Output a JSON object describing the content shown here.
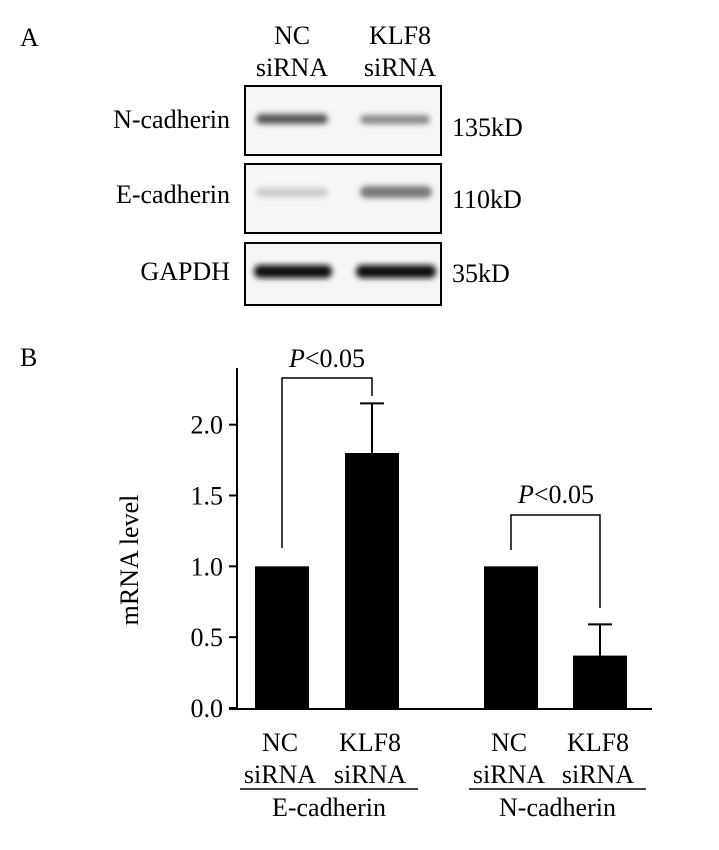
{
  "panel_a": {
    "label": "A",
    "lanes": [
      [
        "NC",
        "siRNA"
      ],
      [
        "KLF8",
        "siRNA"
      ]
    ],
    "rows": [
      {
        "protein": "N-cadherin",
        "size": "135kD"
      },
      {
        "protein": "E-cadherin",
        "size": "110kD"
      },
      {
        "protein": "GAPDH",
        "size": "35kD"
      }
    ]
  },
  "chart_data": {
    "type": "bar",
    "label": "B",
    "ylabel": "mRNA level",
    "categories": [
      [
        "NC",
        "siRNA"
      ],
      [
        "KLF8",
        "siRNA"
      ],
      [
        "NC",
        "siRNA"
      ],
      [
        "KLF8",
        "siRNA"
      ]
    ],
    "groups": [
      "E-cadherin",
      "N-cadherin"
    ],
    "series": [
      {
        "color": "#000000",
        "values": [
          1,
          1.8,
          1,
          0.37
        ],
        "errors": [
          null,
          0.35,
          null,
          0.22
        ]
      }
    ],
    "ylim": [
      0,
      2.4
    ],
    "yticks": [
      {
        "value": 0,
        "label": "0.0"
      },
      0.5,
      {
        "value": 1,
        "label": "1.0"
      },
      1.5,
      {
        "value": 2,
        "label": "2.0"
      }
    ],
    "annotations": [
      {
        "italic": "P",
        "text": "<0.05"
      },
      {
        "italic": "P",
        "text": "<0.05"
      }
    ]
  }
}
